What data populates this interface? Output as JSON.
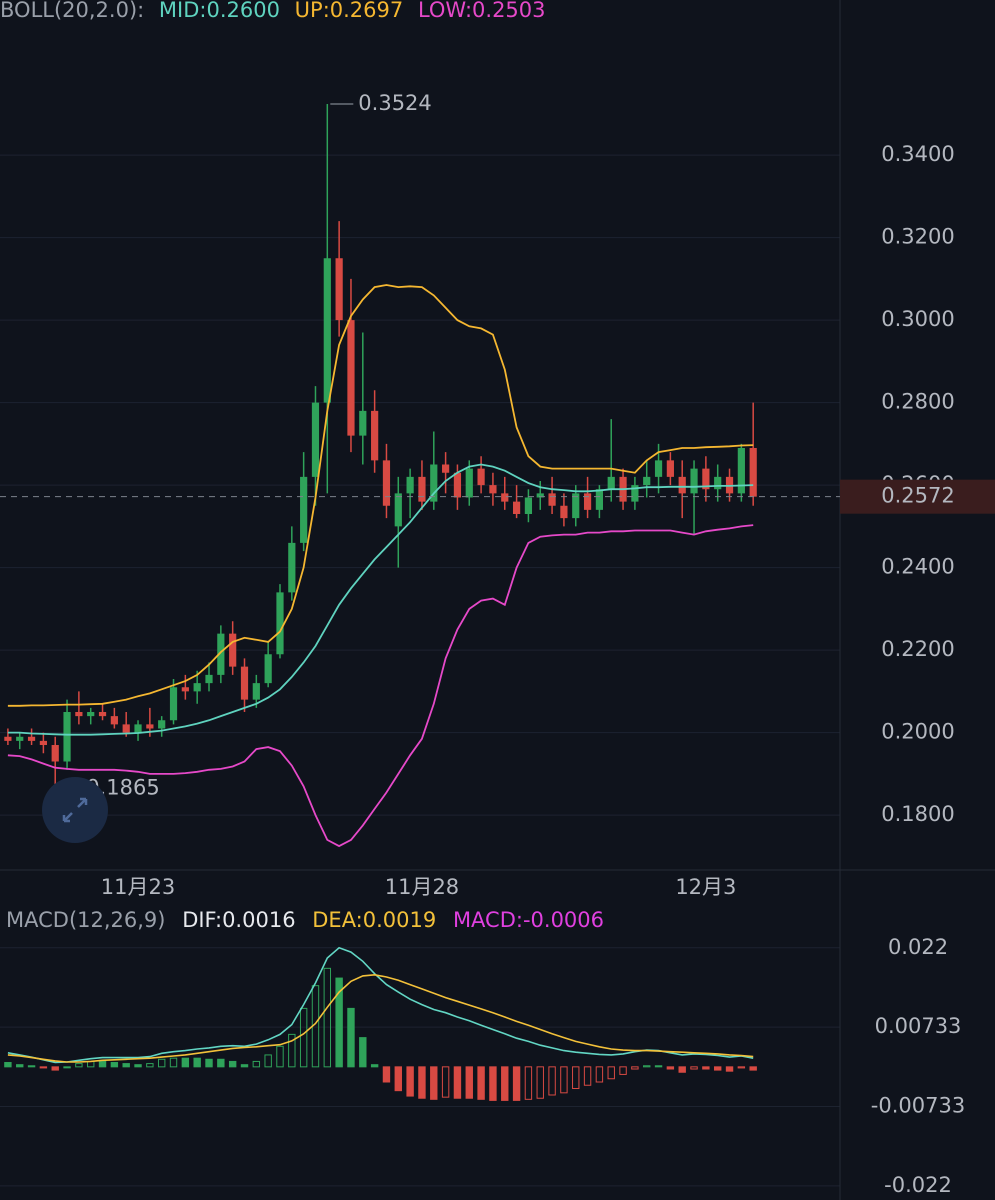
{
  "chart_data": [
    {
      "type": "candlestick",
      "title": "BOLL(20,2.0):",
      "categories": [
        null,
        null,
        null,
        null,
        null,
        null,
        null,
        null,
        null,
        null,
        null,
        "11月23",
        null,
        null,
        null,
        null,
        null,
        null,
        null,
        null,
        null,
        null,
        null,
        null,
        null,
        null,
        null,
        null,
        null,
        null,
        null,
        null,
        null,
        null,
        null,
        "11月28",
        null,
        null,
        null,
        null,
        null,
        null,
        null,
        null,
        null,
        null,
        null,
        null,
        null,
        null,
        null,
        null,
        null,
        null,
        null,
        null,
        null,
        null,
        null,
        "12月3",
        null,
        null,
        null,
        null
      ],
      "open": [
        0.199,
        0.198,
        0.199,
        0.198,
        0.197,
        0.193,
        0.205,
        0.204,
        0.205,
        0.204,
        0.202,
        0.2,
        0.202,
        0.201,
        0.203,
        0.211,
        0.21,
        0.212,
        0.214,
        0.224,
        0.216,
        0.208,
        0.212,
        0.219,
        0.234,
        0.246,
        0.262,
        0.28,
        0.315,
        0.3,
        0.272,
        0.278,
        0.266,
        0.25,
        0.258,
        0.262,
        0.256,
        0.265,
        0.263,
        0.257,
        0.264,
        0.26,
        0.258,
        0.256,
        0.253,
        0.257,
        0.258,
        0.255,
        0.252,
        0.258,
        0.254,
        0.259,
        0.262,
        0.256,
        0.26,
        0.262,
        0.266,
        0.262,
        0.258,
        0.264,
        0.259,
        0.262,
        0.258,
        0.269
      ],
      "high": [
        0.201,
        0.2,
        0.201,
        0.2,
        0.199,
        0.208,
        0.21,
        0.206,
        0.207,
        0.206,
        0.205,
        0.203,
        0.206,
        0.204,
        0.213,
        0.214,
        0.215,
        0.217,
        0.226,
        0.227,
        0.218,
        0.214,
        0.222,
        0.236,
        0.25,
        0.268,
        0.284,
        0.3524,
        0.324,
        0.31,
        0.297,
        0.283,
        0.27,
        0.262,
        0.264,
        0.266,
        0.273,
        0.268,
        0.265,
        0.266,
        0.267,
        0.263,
        0.262,
        0.26,
        0.259,
        0.261,
        0.262,
        0.258,
        0.26,
        0.262,
        0.26,
        0.276,
        0.264,
        0.262,
        0.266,
        0.27,
        0.268,
        0.266,
        0.266,
        0.267,
        0.265,
        0.264,
        0.27,
        0.28
      ],
      "low": [
        0.197,
        0.196,
        0.197,
        0.195,
        0.1865,
        0.191,
        0.202,
        0.202,
        0.203,
        0.201,
        0.199,
        0.198,
        0.199,
        0.199,
        0.202,
        0.208,
        0.207,
        0.21,
        0.212,
        0.214,
        0.205,
        0.206,
        0.211,
        0.218,
        0.232,
        0.244,
        0.255,
        0.258,
        0.296,
        0.268,
        0.265,
        0.263,
        0.252,
        0.24,
        0.252,
        0.254,
        0.254,
        0.258,
        0.254,
        0.255,
        0.258,
        0.255,
        0.254,
        0.252,
        0.251,
        0.254,
        0.253,
        0.25,
        0.25,
        0.252,
        0.252,
        0.256,
        0.254,
        0.254,
        0.257,
        0.258,
        0.26,
        0.252,
        0.248,
        0.256,
        0.256,
        0.256,
        0.256,
        0.255
      ],
      "close": [
        0.198,
        0.199,
        0.198,
        0.197,
        0.193,
        0.205,
        0.204,
        0.205,
        0.204,
        0.202,
        0.2,
        0.202,
        0.201,
        0.203,
        0.211,
        0.21,
        0.212,
        0.214,
        0.224,
        0.216,
        0.208,
        0.212,
        0.219,
        0.234,
        0.246,
        0.262,
        0.28,
        0.315,
        0.3,
        0.272,
        0.278,
        0.266,
        0.255,
        0.258,
        0.262,
        0.256,
        0.265,
        0.263,
        0.257,
        0.264,
        0.26,
        0.258,
        0.256,
        0.253,
        0.257,
        0.258,
        0.255,
        0.252,
        0.258,
        0.254,
        0.259,
        0.262,
        0.256,
        0.26,
        0.262,
        0.266,
        0.262,
        0.258,
        0.264,
        0.259,
        0.262,
        0.258,
        0.269,
        0.2572
      ],
      "up_color": "#2fa35a",
      "down_color": "#d84a43",
      "series": [
        {
          "name": "MID:0.2600",
          "color": "#5fd3bf",
          "values": [
            0.2,
            0.2,
            0.1998,
            0.1997,
            0.1996,
            0.1995,
            0.1995,
            0.1995,
            0.1996,
            0.1997,
            0.1998,
            0.1999,
            0.2002,
            0.2005,
            0.201,
            0.2015,
            0.2022,
            0.203,
            0.204,
            0.205,
            0.206,
            0.207,
            0.2085,
            0.2105,
            0.2135,
            0.217,
            0.221,
            0.226,
            0.231,
            0.235,
            0.2385,
            0.242,
            0.245,
            0.248,
            0.251,
            0.2545,
            0.258,
            0.261,
            0.263,
            0.2645,
            0.265,
            0.2645,
            0.2635,
            0.262,
            0.2605,
            0.2595,
            0.259,
            0.2588,
            0.2585,
            0.2585,
            0.2587,
            0.259,
            0.259,
            0.2592,
            0.2595,
            0.2595,
            0.2596,
            0.2596,
            0.2596,
            0.2597,
            0.2598,
            0.2598,
            0.2599,
            0.26
          ]
        },
        {
          "name": "UP:0.2697",
          "color": "#f5b731",
          "values": [
            0.2065,
            0.2065,
            0.2066,
            0.2066,
            0.2067,
            0.2068,
            0.2068,
            0.2069,
            0.207,
            0.2075,
            0.208,
            0.2088,
            0.2095,
            0.2105,
            0.2115,
            0.2125,
            0.214,
            0.2165,
            0.2195,
            0.222,
            0.223,
            0.2225,
            0.222,
            0.2245,
            0.23,
            0.24,
            0.257,
            0.278,
            0.294,
            0.301,
            0.305,
            0.308,
            0.3085,
            0.308,
            0.3082,
            0.308,
            0.306,
            0.303,
            0.3,
            0.2985,
            0.298,
            0.2965,
            0.288,
            0.274,
            0.267,
            0.2645,
            0.264,
            0.264,
            0.264,
            0.264,
            0.264,
            0.264,
            0.2635,
            0.263,
            0.266,
            0.268,
            0.2685,
            0.269,
            0.269,
            0.2692,
            0.2693,
            0.2694,
            0.2696,
            0.2697
          ]
        },
        {
          "name": "LOW:0.2503",
          "color": "#e649c9",
          "values": [
            0.1945,
            0.1943,
            0.1935,
            0.1925,
            0.1915,
            0.1912,
            0.191,
            0.191,
            0.191,
            0.191,
            0.1908,
            0.1905,
            0.19,
            0.19,
            0.19,
            0.1902,
            0.1905,
            0.191,
            0.1912,
            0.1918,
            0.193,
            0.196,
            0.1965,
            0.1955,
            0.192,
            0.187,
            0.18,
            0.174,
            0.1725,
            0.174,
            0.1775,
            0.1815,
            0.1855,
            0.19,
            0.1945,
            0.1985,
            0.207,
            0.218,
            0.225,
            0.23,
            0.232,
            0.2325,
            0.231,
            0.24,
            0.246,
            0.2475,
            0.2478,
            0.248,
            0.248,
            0.2485,
            0.2485,
            0.2488,
            0.2488,
            0.249,
            0.249,
            0.249,
            0.249,
            0.2485,
            0.248,
            0.2488,
            0.2492,
            0.2495,
            0.25,
            0.2503
          ]
        }
      ],
      "annotations": [
        0.3524,
        0.1865
      ],
      "last_price": 0.2572,
      "ylim": [
        0.1667,
        0.3776
      ],
      "yticks": [
        {
          "value": 0.18,
          "label": "0.1800"
        },
        {
          "value": 0.2,
          "label": "0.2000"
        },
        {
          "value": 0.22,
          "label": "0.2200"
        },
        {
          "value": 0.24,
          "label": "0.2400"
        },
        {
          "value": 0.26,
          "label": "0.2600"
        },
        {
          "value": 0.28,
          "label": "0.2800"
        },
        {
          "value": 0.3,
          "label": "0.3000"
        },
        {
          "value": 0.32,
          "label": "0.3200"
        },
        {
          "value": 0.34,
          "label": "0.3400"
        }
      ],
      "grid": true
    },
    {
      "type": "macd",
      "title": "MACD(12,26,9)",
      "series": [
        {
          "name": "DIF:0.0016",
          "color": "#62d6c4",
          "values": [
            0.0026,
            0.0022,
            0.0018,
            0.0013,
            0.0008,
            0.0009,
            0.0012,
            0.0015,
            0.0017,
            0.0017,
            0.0017,
            0.0017,
            0.0019,
            0.0025,
            0.0028,
            0.003,
            0.0033,
            0.0035,
            0.0038,
            0.0039,
            0.0038,
            0.0042,
            0.005,
            0.006,
            0.0078,
            0.0115,
            0.0155,
            0.0201,
            0.022,
            0.0212,
            0.0195,
            0.0172,
            0.0152,
            0.0138,
            0.0125,
            0.0115,
            0.0106,
            0.01,
            0.0092,
            0.0085,
            0.0077,
            0.0069,
            0.0061,
            0.0053,
            0.0047,
            0.004,
            0.0035,
            0.003,
            0.0027,
            0.0025,
            0.0023,
            0.0022,
            0.0024,
            0.0028,
            0.0031,
            0.003,
            0.0026,
            0.0022,
            0.0024,
            0.0023,
            0.0021,
            0.0018,
            0.002,
            0.0016
          ]
        },
        {
          "name": "DEA:0.0019",
          "color": "#f3c13a",
          "values": [
            0.0022,
            0.002,
            0.0017,
            0.0014,
            0.0011,
            0.0009,
            0.0009,
            0.001,
            0.0012,
            0.0013,
            0.0014,
            0.0015,
            0.0016,
            0.0018,
            0.002,
            0.0022,
            0.0025,
            0.0028,
            0.0031,
            0.0034,
            0.0036,
            0.0037,
            0.0039,
            0.0041,
            0.0048,
            0.0061,
            0.008,
            0.011,
            0.0138,
            0.0158,
            0.0168,
            0.017,
            0.0166,
            0.016,
            0.0152,
            0.0144,
            0.0136,
            0.0128,
            0.0121,
            0.0114,
            0.0107,
            0.01,
            0.0092,
            0.0084,
            0.0077,
            0.0069,
            0.0061,
            0.0054,
            0.0047,
            0.0042,
            0.0037,
            0.0033,
            0.0031,
            0.003,
            0.003,
            0.0029,
            0.0028,
            0.0027,
            0.0026,
            0.0025,
            0.0024,
            0.0022,
            0.0021,
            0.0019
          ]
        }
      ],
      "histogram": {
        "name": "MACD:-0.0006",
        "color": "#e040e0",
        "up_color": "#2fa35a",
        "down_color": "#d84a43",
        "values": [
          0.0008,
          0.0004,
          0.0002,
          -0.0002,
          -0.0006,
          0,
          0.0006,
          0.001,
          0.001,
          0.0008,
          0.0006,
          0.0004,
          0.0006,
          0.0014,
          0.0016,
          0.0016,
          0.0016,
          0.0014,
          0.0014,
          0.001,
          0.0004,
          0.001,
          0.0022,
          0.0038,
          0.006,
          0.0108,
          0.015,
          0.0182,
          0.0164,
          0.0108,
          0.0054,
          0.0004,
          -0.0028,
          -0.0044,
          -0.0054,
          -0.0058,
          -0.006,
          -0.0056,
          -0.0058,
          -0.0058,
          -0.006,
          -0.0062,
          -0.0062,
          -0.0062,
          -0.006,
          -0.0058,
          -0.0052,
          -0.0048,
          -0.004,
          -0.0034,
          -0.0028,
          -0.0022,
          -0.0014,
          -0.0004,
          0.0002,
          0.0002,
          -0.0004,
          -0.001,
          -0.0004,
          -0.0004,
          -0.0006,
          -0.0008,
          -0.0002,
          -0.0006
        ]
      },
      "ylim": [
        -0.0246,
        0.0299
      ],
      "yticks": [
        -0.022,
        -0.00733,
        0.00733,
        0.022
      ],
      "grid": true
    }
  ]
}
